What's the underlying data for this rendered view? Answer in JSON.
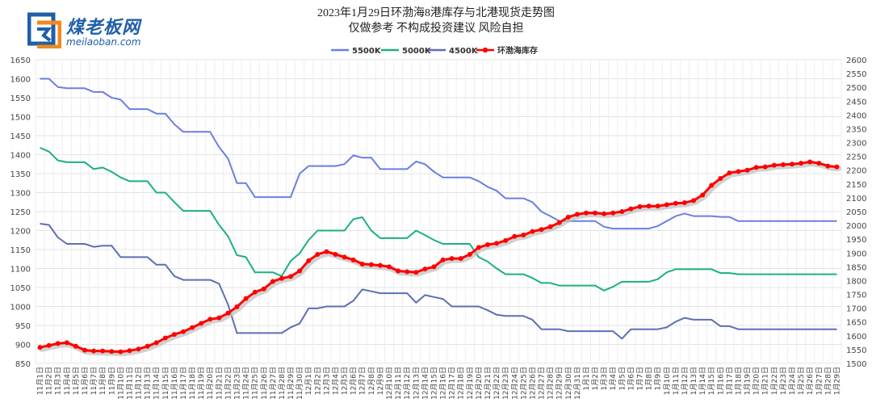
{
  "logo": {
    "brand": "煤老板网",
    "domain": "meilaoban.com"
  },
  "chart_data": {
    "type": "line",
    "title": "2023年1月29日环渤海8港库存与北港现货走势图",
    "subtitle": "仅做参考 不构成投资建议 风险自担",
    "ylim_left": [
      850,
      1650
    ],
    "ylim_right": [
      1500,
      2600
    ],
    "y_ticks_left": [
      "850",
      "900",
      "950",
      "1000",
      "1050",
      "1100",
      "1150",
      "1200",
      "1250",
      "1300",
      "1350",
      "1400",
      "1450",
      "1500",
      "1550",
      "1600",
      "1650"
    ],
    "y_ticks_right": [
      "1500",
      "1550",
      "1600",
      "1650",
      "1700",
      "1750",
      "1800",
      "1850",
      "1900",
      "1950",
      "2000",
      "2050",
      "2100",
      "2150",
      "2200",
      "2250",
      "2300",
      "2350",
      "2400",
      "2450",
      "2500",
      "2550",
      "2600"
    ],
    "categories": [
      "11月1日",
      "11月2日",
      "11月3日",
      "11月4日",
      "11月5日",
      "11月6日",
      "11月7日",
      "11月8日",
      "11月9日",
      "11月10日",
      "11月11日",
      "11月12日",
      "11月13日",
      "11月14日",
      "11月15日",
      "11月16日",
      "11月17日",
      "11月18日",
      "11月19日",
      "11月20日",
      "11月21日",
      "11月22日",
      "11月23日",
      "11月24日",
      "11月25日",
      "11月26日",
      "11月27日",
      "11月28日",
      "11月29日",
      "11月30日",
      "12月1日",
      "12月2日",
      "12月3日",
      "12月4日",
      "12月5日",
      "12月6日",
      "12月7日",
      "12月8日",
      "12月9日",
      "12月10日",
      "12月11日",
      "12月12日",
      "12月13日",
      "12月14日",
      "12月15日",
      "12月16日",
      "12月17日",
      "12月18日",
      "12月19日",
      "12月20日",
      "12月21日",
      "12月22日",
      "12月23日",
      "12月24日",
      "12月25日",
      "12月26日",
      "12月27日",
      "12月28日",
      "12月29日",
      "12月30日",
      "12月31日",
      "1月1日",
      "1月2日",
      "1月3日",
      "1月4日",
      "1月5日",
      "1月6日",
      "1月7日",
      "1月8日",
      "1月9日",
      "1月10日",
      "1月11日",
      "1月12日",
      "1月13日",
      "1月14日",
      "1月15日",
      "1月16日",
      "1月17日",
      "1月18日",
      "1月19日",
      "1月20日",
      "1月21日",
      "1月22日",
      "1月23日",
      "1月24日",
      "1月25日",
      "1月26日",
      "1月27日",
      "1月28日",
      "1月29日"
    ],
    "series": [
      {
        "name": "5500K",
        "axis": "left",
        "color": "#6a7fe0",
        "values": [
          1600,
          1600,
          1578,
          1575,
          1575,
          1575,
          1565,
          1565,
          1550,
          1545,
          1520,
          1520,
          1520,
          1508,
          1508,
          1480,
          1460,
          1460,
          1460,
          1460,
          1420,
          1390,
          1325,
          1325,
          1288,
          1288,
          1288,
          1288,
          1288,
          1350,
          1370,
          1370,
          1370,
          1370,
          1375,
          1398,
          1392,
          1392,
          1362,
          1362,
          1362,
          1362,
          1382,
          1375,
          1355,
          1340,
          1340,
          1340,
          1340,
          1330,
          1315,
          1305,
          1285,
          1285,
          1285,
          1275,
          1250,
          1238,
          1225,
          1225,
          1225,
          1225,
          1225,
          1210,
          1205,
          1205,
          1205,
          1205,
          1205,
          1212,
          1225,
          1238,
          1245,
          1238,
          1238,
          1238,
          1236,
          1236,
          1225,
          1225,
          1225,
          1225,
          1225,
          1225,
          1225,
          1225,
          1225,
          1225,
          1225,
          1225
        ]
      },
      {
        "name": "5000K",
        "axis": "left",
        "color": "#1db07e",
        "values": [
          1418,
          1408,
          1385,
          1380,
          1380,
          1380,
          1362,
          1366,
          1355,
          1340,
          1330,
          1330,
          1330,
          1300,
          1300,
          1275,
          1252,
          1252,
          1252,
          1252,
          1215,
          1185,
          1135,
          1130,
          1090,
          1090,
          1090,
          1080,
          1120,
          1140,
          1175,
          1200,
          1200,
          1200,
          1200,
          1230,
          1235,
          1200,
          1180,
          1180,
          1180,
          1180,
          1200,
          1188,
          1175,
          1165,
          1165,
          1165,
          1165,
          1130,
          1118,
          1100,
          1085,
          1085,
          1085,
          1075,
          1062,
          1062,
          1055,
          1055,
          1055,
          1055,
          1055,
          1042,
          1052,
          1065,
          1065,
          1065,
          1065,
          1072,
          1090,
          1098,
          1098,
          1098,
          1098,
          1098,
          1088,
          1088,
          1085,
          1085,
          1085,
          1085,
          1085,
          1085,
          1085,
          1085,
          1085,
          1085,
          1085,
          1085
        ]
      },
      {
        "name": "4500K",
        "axis": "left",
        "color": "#5d6fb5",
        "values": [
          1218,
          1215,
          1182,
          1165,
          1165,
          1165,
          1157,
          1160,
          1160,
          1130,
          1130,
          1130,
          1130,
          1110,
          1110,
          1080,
          1070,
          1070,
          1070,
          1070,
          1060,
          1005,
          930,
          930,
          930,
          930,
          930,
          930,
          945,
          955,
          995,
          995,
          1000,
          1000,
          1000,
          1015,
          1045,
          1040,
          1035,
          1035,
          1035,
          1035,
          1010,
          1030,
          1025,
          1020,
          1000,
          1000,
          1000,
          1000,
          990,
          978,
          975,
          975,
          975,
          965,
          940,
          940,
          940,
          935,
          935,
          935,
          935,
          935,
          935,
          915,
          940,
          940,
          940,
          940,
          945,
          960,
          970,
          965,
          965,
          965,
          948,
          948,
          940,
          940,
          940,
          940,
          940,
          940,
          940,
          940,
          940,
          940,
          940,
          940
        ]
      },
      {
        "name": "环渤海库存",
        "axis": "right",
        "color": "#ff0000",
        "marker": true,
        "values": [
          1558,
          1565,
          1572,
          1575,
          1562,
          1548,
          1545,
          1545,
          1543,
          1542,
          1546,
          1552,
          1562,
          1575,
          1592,
          1605,
          1615,
          1630,
          1645,
          1660,
          1665,
          1682,
          1705,
          1735,
          1758,
          1770,
          1797,
          1808,
          1815,
          1835,
          1872,
          1895,
          1905,
          1895,
          1885,
          1875,
          1860,
          1858,
          1855,
          1850,
          1835,
          1832,
          1830,
          1842,
          1850,
          1875,
          1880,
          1880,
          1895,
          1920,
          1930,
          1935,
          1945,
          1960,
          1965,
          1978,
          1985,
          1995,
          2010,
          2030,
          2040,
          2045,
          2045,
          2042,
          2045,
          2050,
          2060,
          2068,
          2070,
          2070,
          2075,
          2080,
          2082,
          2090,
          2110,
          2145,
          2170,
          2190,
          2195,
          2200,
          2210,
          2212,
          2218,
          2220,
          2222,
          2225,
          2230,
          2225,
          2215,
          2212
        ]
      }
    ],
    "grid": true,
    "legend": "top-center"
  }
}
